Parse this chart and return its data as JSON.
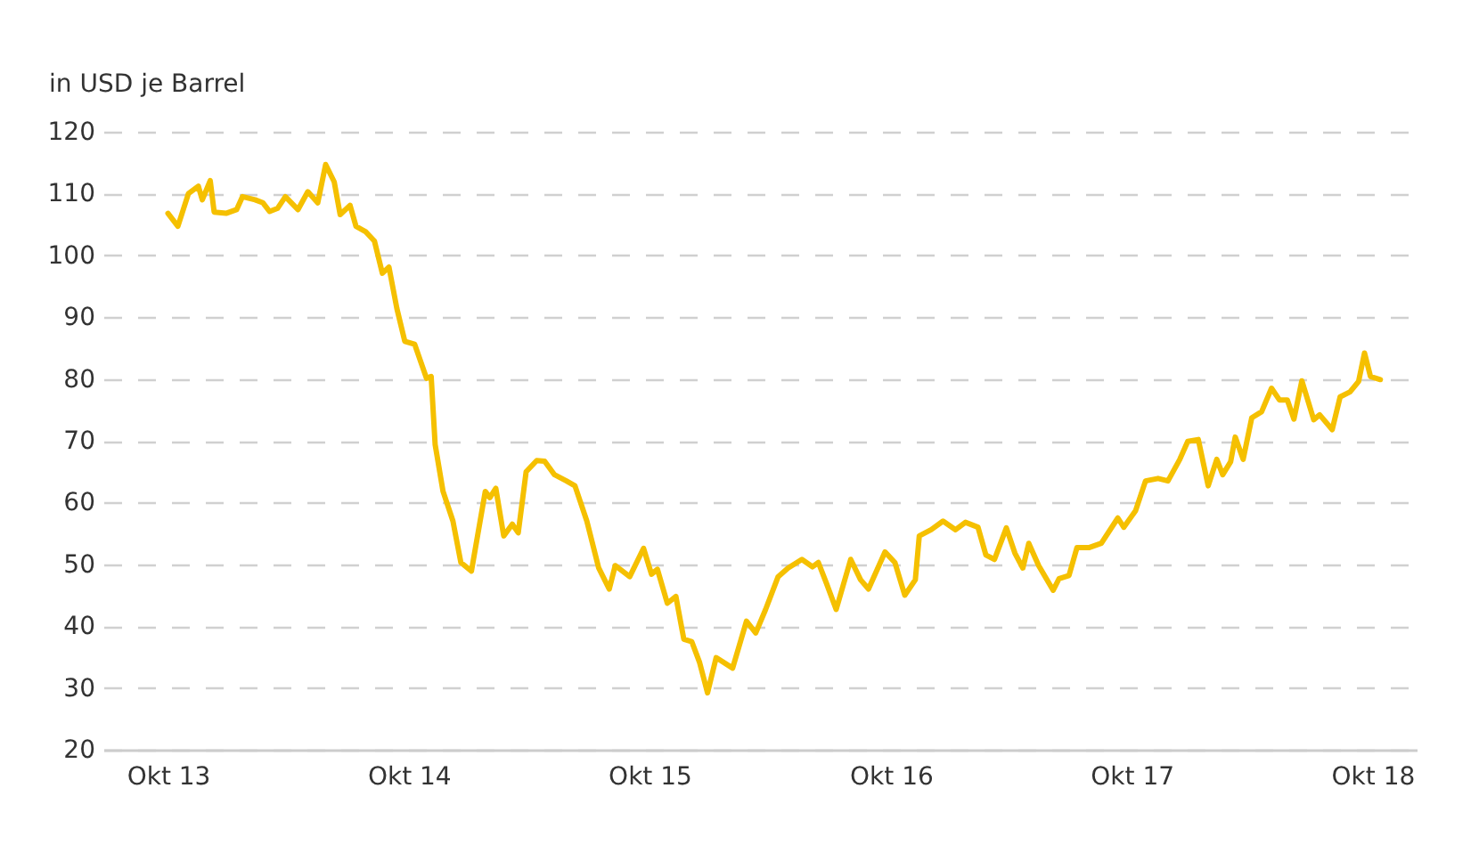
{
  "chart_data": {
    "type": "line",
    "ylabel": "in USD je Barrel",
    "x": [
      "2013-10-01",
      "2013-10-16",
      "2013-11-01",
      "2013-11-16",
      "2013-11-22",
      "2013-12-04",
      "2013-12-10",
      "2013-12-28",
      "2014-01-13",
      "2014-01-22",
      "2014-02-10",
      "2014-02-22",
      "2014-03-04",
      "2014-03-16",
      "2014-03-28",
      "2014-04-16",
      "2014-05-01",
      "2014-05-16",
      "2014-05-28",
      "2014-06-10",
      "2014-06-19",
      "2014-07-04",
      "2014-07-13",
      "2014-07-28",
      "2014-08-10",
      "2014-08-22",
      "2014-09-01",
      "2014-09-13",
      "2014-09-25",
      "2014-10-10",
      "2014-10-28",
      "2014-11-04",
      "2014-11-10",
      "2014-11-22",
      "2014-12-07",
      "2014-12-19",
      "2015-01-04",
      "2015-01-25",
      "2015-02-01",
      "2015-02-10",
      "2015-02-22",
      "2015-03-07",
      "2015-03-16",
      "2015-03-28",
      "2015-04-13",
      "2015-04-25",
      "2015-05-10",
      "2015-05-28",
      "2015-06-10",
      "2015-06-28",
      "2015-07-16",
      "2015-08-01",
      "2015-08-10",
      "2015-09-01",
      "2015-09-22",
      "2015-10-04",
      "2015-10-13",
      "2015-10-28",
      "2015-11-10",
      "2015-11-22",
      "2015-12-04",
      "2015-12-16",
      "2015-12-28",
      "2016-01-10",
      "2016-02-04",
      "2016-02-25",
      "2016-03-10",
      "2016-03-25",
      "2016-04-13",
      "2016-04-28",
      "2016-05-19",
      "2016-06-04",
      "2016-06-13",
      "2016-06-25",
      "2016-07-10",
      "2016-08-01",
      "2016-08-16",
      "2016-08-28",
      "2016-09-22",
      "2016-10-07",
      "2016-10-22",
      "2016-11-07",
      "2016-11-13",
      "2016-12-01",
      "2016-12-19",
      "2017-01-07",
      "2017-01-22",
      "2017-02-10",
      "2017-02-22",
      "2017-03-07",
      "2017-03-25",
      "2017-04-07",
      "2017-04-19",
      "2017-04-28",
      "2017-05-13",
      "2017-06-04",
      "2017-06-13",
      "2017-06-28",
      "2017-07-10",
      "2017-07-28",
      "2017-08-16",
      "2017-09-10",
      "2017-09-19",
      "2017-10-07",
      "2017-10-22",
      "2017-11-10",
      "2017-11-25",
      "2017-12-13",
      "2017-12-25",
      "2018-01-10",
      "2018-01-25",
      "2018-02-07",
      "2018-02-16",
      "2018-02-28",
      "2018-03-07",
      "2018-03-19",
      "2018-04-01",
      "2018-04-16",
      "2018-05-01",
      "2018-05-13",
      "2018-05-25",
      "2018-06-04",
      "2018-06-16",
      "2018-07-04",
      "2018-07-13",
      "2018-08-01",
      "2018-08-13",
      "2018-08-28",
      "2018-09-10",
      "2018-09-19",
      "2018-09-28",
      "2018-10-13"
    ],
    "series": [
      {
        "color": "#f5c000",
        "values": [
          106.8,
          104.7,
          110,
          111.2,
          109,
          112.1,
          107,
          106.8,
          107.4,
          109.5,
          109,
          108.5,
          107.1,
          107.6,
          109.5,
          107.4,
          110.3,
          108.5,
          114.7,
          111.9,
          106.6,
          108.1,
          104.7,
          103.8,
          102.3,
          97.1,
          98.1,
          91.4,
          86.1,
          85.6,
          80.1,
          80.4,
          69.4,
          61.8,
          57,
          50.3,
          48.9,
          61.8,
          60.8,
          62.3,
          54.6,
          56.5,
          55.1,
          65,
          66.8,
          66.7,
          64.5,
          63.5,
          62.7,
          57,
          49.4,
          46,
          49.8,
          48,
          52.6,
          48.4,
          49.2,
          43.7,
          44.8,
          37.9,
          37.5,
          34.1,
          29.2,
          34.9,
          33.2,
          40.8,
          38.9,
          42.7,
          48,
          49.4,
          50.8,
          49.6,
          50.3,
          47,
          42.7,
          50.8,
          47.5,
          46,
          52,
          50.3,
          45,
          47.5,
          54.6,
          55.6,
          57,
          55.6,
          56.8,
          56,
          51.5,
          50.8,
          55.9,
          51.8,
          49.4,
          53.4,
          49.8,
          45.8,
          47.7,
          48.2,
          52.7,
          52.7,
          53.4,
          57.5,
          56,
          58.7,
          63.5,
          63.9,
          63.5,
          67,
          69.9,
          70.2,
          62.7,
          67,
          64.5,
          66.6,
          70.6,
          67,
          73.7,
          74.7,
          78.5,
          76.6,
          76.6,
          73.5,
          79.7,
          73.4,
          74.2,
          71.8,
          77.1,
          77.9,
          79.6,
          84.2,
          80.4,
          79.9
        ]
      }
    ],
    "xlim": [
      "2013-06-25",
      "2018-12-07"
    ],
    "xticks": [
      {
        "value": "2013-10-01",
        "label": "Okt 13"
      },
      {
        "value": "2014-10-01",
        "label": "Okt 14"
      },
      {
        "value": "2015-10-01",
        "label": "Okt 15"
      },
      {
        "value": "2016-10-01",
        "label": "Okt 16"
      },
      {
        "value": "2017-10-01",
        "label": "Okt 17"
      },
      {
        "value": "2018-10-01",
        "label": "Okt 18"
      }
    ],
    "ylim": [
      20,
      120
    ],
    "yticks": [
      20,
      30,
      40,
      50,
      60,
      70,
      80,
      90,
      100,
      110,
      120
    ],
    "grid": "y",
    "line_style": "solid",
    "marker": "none"
  }
}
